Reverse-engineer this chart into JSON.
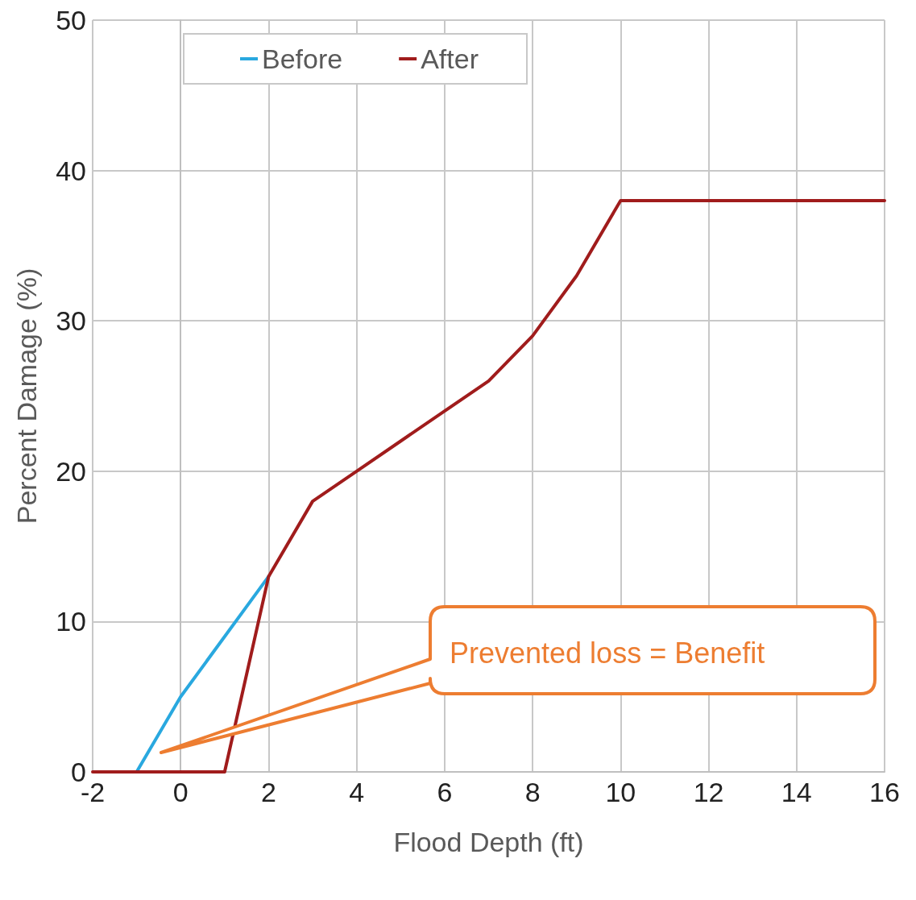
{
  "chart_data": {
    "type": "line",
    "xlabel": "Flood Depth (ft)",
    "ylabel": "Percent Damage (%)",
    "xlim": [
      -2,
      16
    ],
    "xticks": [
      -2,
      0,
      2,
      4,
      6,
      8,
      10,
      12,
      14,
      16
    ],
    "ylim": [
      0,
      50
    ],
    "yticks": [
      0,
      10,
      20,
      30,
      40,
      50
    ],
    "grid": true,
    "legend": "top left",
    "line_style": "solid",
    "series": [
      {
        "name": "Before",
        "color": "#29a8df",
        "x": [
          -1,
          0,
          2
        ],
        "values": [
          0,
          5,
          13
        ]
      },
      {
        "name": "After",
        "color": "#a01c1c",
        "x": [
          -2,
          1,
          2,
          3,
          4,
          5,
          6,
          7,
          8,
          9,
          10,
          16
        ],
        "values": [
          0,
          0,
          13,
          18,
          20,
          22,
          24,
          26,
          29,
          33,
          38,
          38
        ]
      }
    ],
    "annotations": [
      "Prevented loss = Benefit"
    ]
  }
}
